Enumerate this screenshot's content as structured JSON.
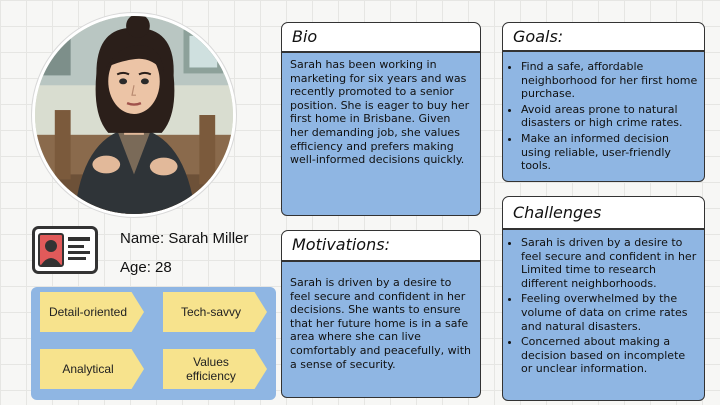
{
  "persona": {
    "portrait_alt": "Sarah Miller",
    "name_label": "Name: Sarah Miller",
    "age_label": "Age: 28"
  },
  "traits": [
    {
      "label": "Detail-oriented"
    },
    {
      "label": "Tech-savvy"
    },
    {
      "label": "Analytical"
    },
    {
      "label": "Values\nefficiency"
    }
  ],
  "bio": {
    "title": "Bio",
    "text": "Sarah has been working in marketing for six years and was recently promoted to a senior position. She is eager to buy her first home in Brisbane. Given her demanding job, she values efficiency and prefers making well-informed decisions quickly."
  },
  "motivations": {
    "title": "Motivations:",
    "text": "Sarah is driven by a desire to feel secure and confident in her decisions. She wants to ensure that her future home is in a safe area where she can live comfortably and peacefully, with a sense of security."
  },
  "goals": {
    "title": "Goals:",
    "items": [
      "Find a safe, affordable neighborhood for her first home purchase.",
      "Avoid areas prone to natural disasters or high crime rates.",
      "Make an informed decision using reliable, user-friendly tools."
    ]
  },
  "challenges": {
    "title": "Challenges",
    "items": [
      "Sarah is driven by a desire to feel secure and confident in her Limited time to research different neighborhoods.",
      "Feeling overwhelmed by the volume of data on crime rates and natural disasters.",
      "Concerned about making a decision based on incomplete or unclear information."
    ]
  },
  "colors": {
    "card_fill": "#8fb6e3",
    "tag_fill": "#f7e38d",
    "title_fill": "#ffffff"
  }
}
